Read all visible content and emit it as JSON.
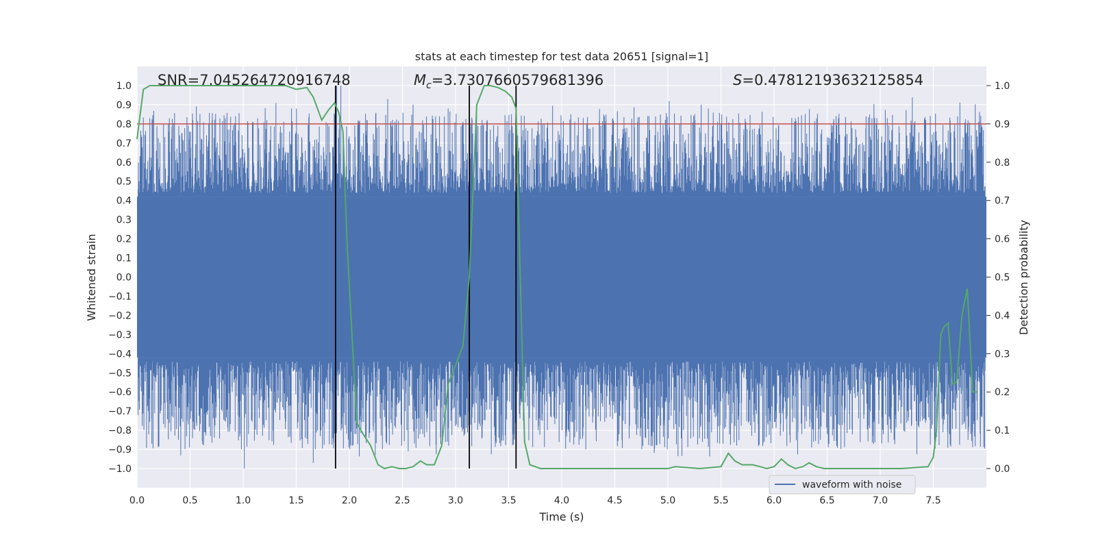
{
  "chart_data": {
    "type": "line",
    "title": "stats at each timestep for test data 20651 [signal=1]",
    "xlabel": "Time (s)",
    "ylabel_left": "Whitened strain",
    "ylabel_right": "Detection probability",
    "xlim": [
      0.0,
      8.0
    ],
    "ylim_left": [
      -1.1,
      1.1
    ],
    "ylim_right": [
      -0.05,
      1.05
    ],
    "x_ticks": [
      "0.0",
      "0.5",
      "1.0",
      "1.5",
      "2.0",
      "2.5",
      "3.0",
      "3.5",
      "4.0",
      "4.5",
      "5.0",
      "5.5",
      "6.0",
      "6.5",
      "7.0",
      "7.5"
    ],
    "y_ticks_left": [
      "1.0",
      "0.9",
      "0.8",
      "0.7",
      "0.6",
      "0.5",
      "0.4",
      "0.3",
      "0.2",
      "0.1",
      "0.0",
      "−0.1",
      "−0.2",
      "−0.3",
      "−0.4",
      "−0.5",
      "−0.6",
      "−0.7",
      "−0.8",
      "−0.9",
      "−1.0"
    ],
    "y_ticks_right": [
      "1.0",
      "0.9",
      "0.8",
      "0.7",
      "0.6",
      "0.5",
      "0.4",
      "0.3",
      "0.2",
      "0.1",
      "0.0"
    ],
    "grid": true,
    "legend_position": "lower-right",
    "annotations": {
      "snr_label": "SNR=7.045264720916748",
      "mc_symbol": "M",
      "mc_subscript": "c",
      "mc_value": "=3.7307660579681396",
      "s_symbol": "S",
      "s_value": "=0.47812193632125854"
    },
    "threshold": {
      "value": 0.9,
      "color": "#c44e52"
    },
    "vertical_lines": {
      "x": [
        1.87,
        3.13,
        3.57
      ],
      "color": "#000000"
    },
    "series": [
      {
        "name": "waveform with noise",
        "color": "#4c72b0",
        "kind": "noise-waveform",
        "core_amplitude": 0.42,
        "max": 1.0,
        "min": -1.0
      },
      {
        "color": "#55a868",
        "axis": "right",
        "x": [
          0.0,
          0.06,
          0.12,
          0.2,
          0.4,
          0.6,
          0.8,
          1.0,
          1.2,
          1.4,
          1.5,
          1.6,
          1.66,
          1.74,
          1.8,
          1.86,
          1.9,
          1.94,
          1.98,
          2.07,
          2.13,
          2.2,
          2.27,
          2.33,
          2.4,
          2.47,
          2.53,
          2.6,
          2.67,
          2.73,
          2.8,
          2.87,
          2.93,
          3.0,
          3.07,
          3.13,
          3.2,
          3.27,
          3.33,
          3.4,
          3.47,
          3.53,
          3.57,
          3.6,
          3.65,
          3.7,
          3.8,
          3.87,
          4.0,
          4.2,
          4.5,
          4.7,
          5.0,
          5.07,
          5.3,
          5.5,
          5.53,
          5.57,
          5.63,
          5.7,
          5.8,
          5.87,
          5.93,
          6.0,
          6.07,
          6.13,
          6.2,
          6.27,
          6.33,
          6.4,
          6.47,
          6.53,
          6.8,
          7.0,
          7.2,
          7.45,
          7.5,
          7.53,
          7.57,
          7.6,
          7.64,
          7.68,
          7.72,
          7.77,
          7.82,
          7.87,
          7.92
        ],
        "values": [
          0.86,
          0.99,
          1.0,
          1.0,
          1.0,
          1.0,
          1.0,
          1.0,
          1.0,
          1.0,
          0.99,
          0.995,
          0.97,
          0.91,
          0.935,
          0.955,
          0.93,
          0.88,
          0.58,
          0.12,
          0.09,
          0.06,
          0.01,
          0.0,
          0.005,
          0.0,
          0.0,
          0.005,
          0.02,
          0.01,
          0.01,
          0.06,
          0.22,
          0.27,
          0.32,
          0.5,
          0.95,
          1.0,
          1.0,
          0.995,
          0.985,
          0.97,
          0.94,
          0.6,
          0.07,
          0.01,
          0.0,
          0.0,
          0.0,
          0.0,
          0.0,
          0.0,
          0.0,
          0.005,
          0.0,
          0.005,
          0.02,
          0.04,
          0.02,
          0.01,
          0.01,
          0.005,
          0.0,
          0.005,
          0.025,
          0.01,
          0.0,
          0.005,
          0.015,
          0.005,
          0.0,
          0.0,
          0.0,
          0.0,
          0.0,
          0.005,
          0.03,
          0.1,
          0.35,
          0.37,
          0.38,
          0.22,
          0.225,
          0.4,
          0.47,
          0.2,
          0.2
        ]
      }
    ]
  }
}
